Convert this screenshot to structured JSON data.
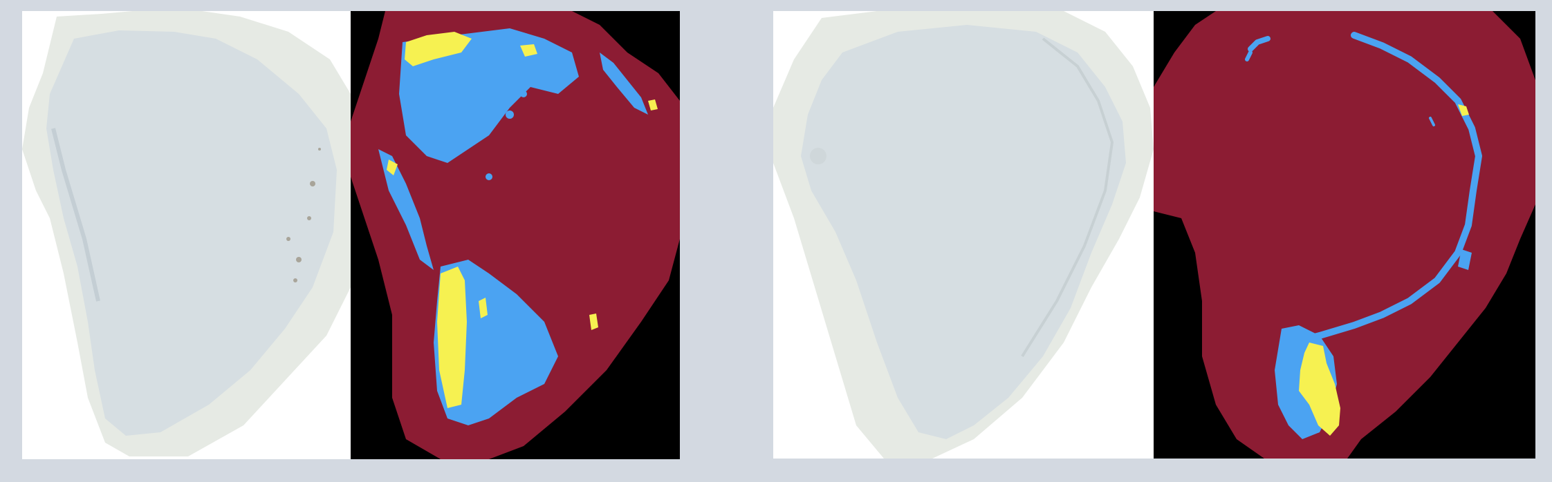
{
  "figure": {
    "panels": [
      {
        "id": "p1",
        "kind": "tissue-scan",
        "label": ""
      },
      {
        "id": "p2",
        "kind": "segmentation-mask",
        "label": ""
      },
      {
        "id": "p3",
        "kind": "tissue-scan",
        "label": ""
      },
      {
        "id": "p4",
        "kind": "segmentation-mask",
        "label": ""
      }
    ]
  },
  "colors": {
    "page_background": "#d3d9e1",
    "scan_background": "#ffffff",
    "tissue_halo": "#e6eae4",
    "tissue": "#d6dee2",
    "tissue_dark_spots": "#8a7f6a",
    "mask_background": "#000000",
    "mask_region": "#8c1c33",
    "mask_class_blue": "#4ba3f2",
    "mask_class_yellow": "#f6f151"
  }
}
